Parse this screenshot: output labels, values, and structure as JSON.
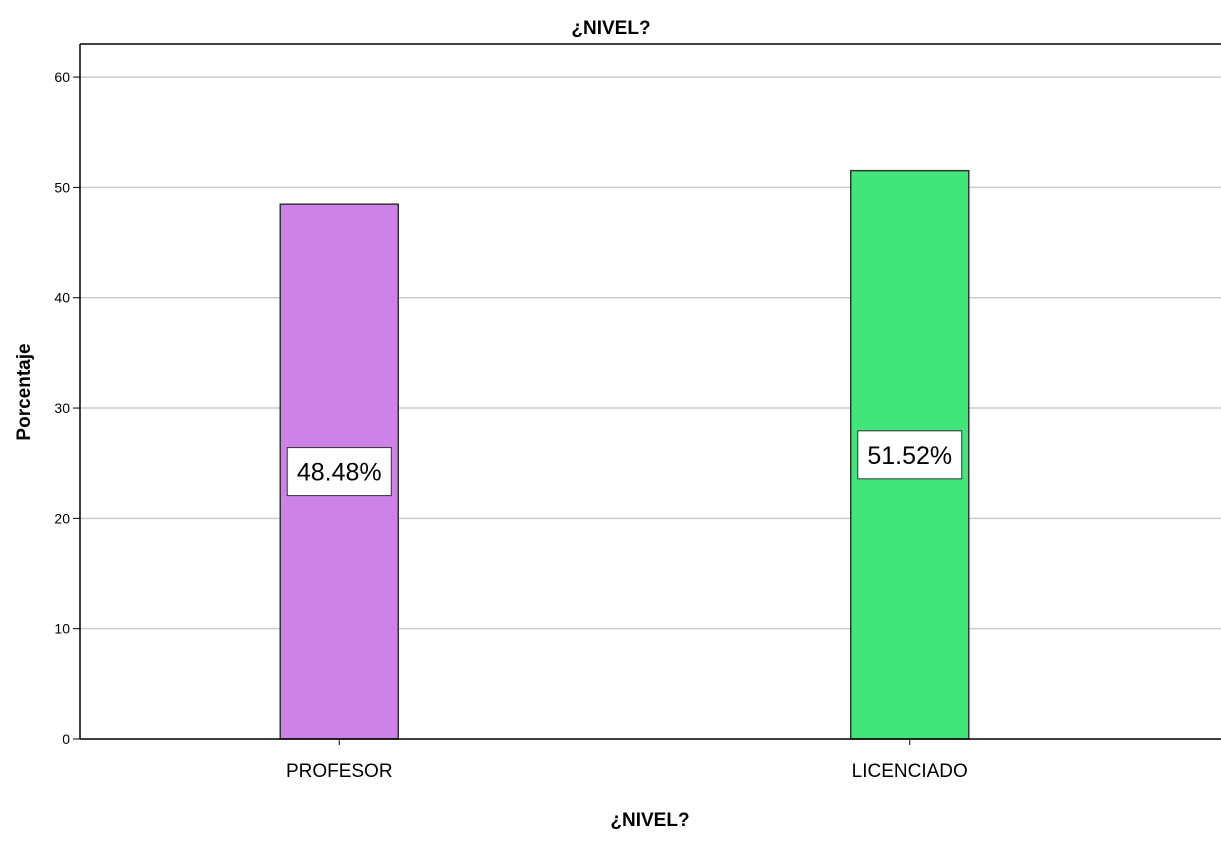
{
  "chart_data": {
    "type": "bar",
    "title": "¿NIVEL?",
    "xlabel": "¿NIVEL?",
    "ylabel": "Porcentaje",
    "categories": [
      "PROFESOR",
      "LICENCIADO"
    ],
    "values": [
      48.48,
      51.52
    ],
    "data_labels": [
      "48.48%",
      "51.52%"
    ],
    "colors": [
      "#cc82e6",
      "#40e67a"
    ],
    "ylim": [
      0,
      63
    ],
    "yticks": [
      0,
      10,
      20,
      30,
      40,
      50,
      60
    ],
    "grid": true,
    "legend": "none"
  }
}
